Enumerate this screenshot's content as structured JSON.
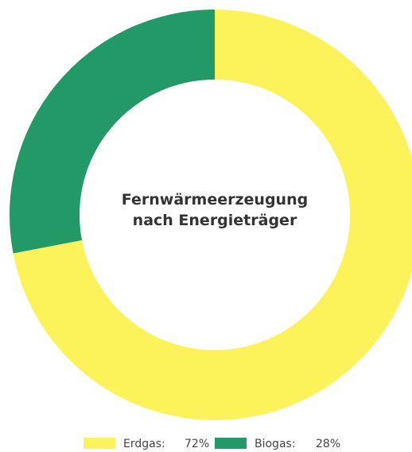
{
  "chart_data": {
    "type": "donut",
    "title": "Fernwärmeerzeugung nach Energieträger",
    "categories": [
      "Erdgas:",
      "Biogas:"
    ],
    "values": [
      72,
      28
    ],
    "value_labels": [
      "72%",
      "28%"
    ],
    "colors": [
      "#fcf259",
      "#229966"
    ]
  }
}
